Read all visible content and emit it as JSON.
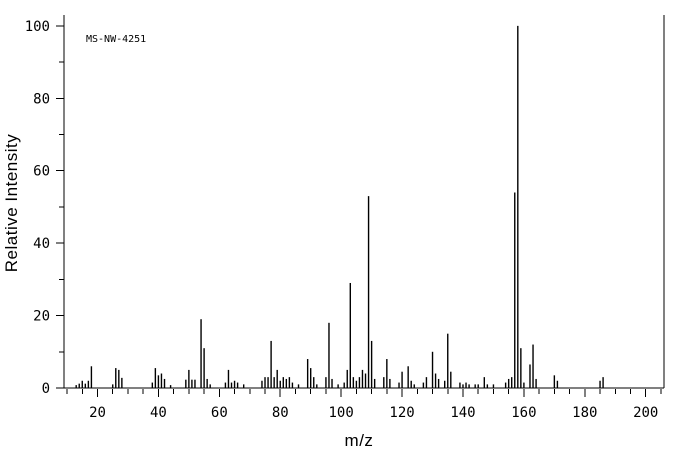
{
  "chart_data": {
    "type": "bar",
    "subtype": "mass-spectrum",
    "annotation": "MS-NW-4251",
    "xlabel": "m/z",
    "ylabel": "Relative Intensity",
    "background": "#ffffff",
    "bar_color": "#000000",
    "axis_color": "#000000",
    "grid": false,
    "legend": "none",
    "xlim": [
      9,
      206
    ],
    "ylim": [
      0,
      103
    ],
    "x_major_ticks": [
      20,
      40,
      60,
      80,
      100,
      120,
      140,
      160,
      180,
      200
    ],
    "x_minor_tick_step": 5,
    "y_major_ticks": [
      0,
      20,
      40,
      60,
      80,
      100
    ],
    "y_minor_tick_step": 10,
    "base_peak_mz": 158,
    "peaks": [
      [
        13,
        0.8
      ],
      [
        14,
        1.2
      ],
      [
        15,
        2
      ],
      [
        16,
        1.2
      ],
      [
        17,
        2
      ],
      [
        18,
        6
      ],
      [
        25,
        1
      ],
      [
        26,
        5.5
      ],
      [
        27,
        5
      ],
      [
        28,
        2.8
      ],
      [
        38,
        1.5
      ],
      [
        39,
        5.5
      ],
      [
        40,
        3.5
      ],
      [
        41,
        4
      ],
      [
        42,
        2.5
      ],
      [
        44,
        0.8
      ],
      [
        49,
        2.3
      ],
      [
        50,
        5
      ],
      [
        51,
        2.3
      ],
      [
        52,
        2.3
      ],
      [
        54,
        19
      ],
      [
        55,
        11
      ],
      [
        56,
        2.5
      ],
      [
        57,
        1
      ],
      [
        62,
        1.5
      ],
      [
        63,
        5
      ],
      [
        64,
        1.5
      ],
      [
        65,
        2
      ],
      [
        66,
        1.5
      ],
      [
        68,
        1
      ],
      [
        74,
        2
      ],
      [
        75,
        3
      ],
      [
        76,
        3
      ],
      [
        77,
        13
      ],
      [
        78,
        3
      ],
      [
        79,
        5
      ],
      [
        80,
        2
      ],
      [
        81,
        3
      ],
      [
        82,
        2.5
      ],
      [
        83,
        3
      ],
      [
        84,
        1.5
      ],
      [
        86,
        1
      ],
      [
        89,
        8
      ],
      [
        90,
        5.5
      ],
      [
        91,
        3
      ],
      [
        92,
        1
      ],
      [
        95,
        3
      ],
      [
        96,
        18
      ],
      [
        97,
        2.5
      ],
      [
        99,
        1
      ],
      [
        101,
        1.5
      ],
      [
        102,
        5
      ],
      [
        103,
        29
      ],
      [
        104,
        3
      ],
      [
        105,
        2
      ],
      [
        106,
        3
      ],
      [
        107,
        5
      ],
      [
        108,
        4
      ],
      [
        109,
        53
      ],
      [
        110,
        13
      ],
      [
        111,
        2.5
      ],
      [
        114,
        3
      ],
      [
        115,
        8
      ],
      [
        116,
        2.5
      ],
      [
        119,
        1.5
      ],
      [
        120,
        4.5
      ],
      [
        122,
        6
      ],
      [
        123,
        2
      ],
      [
        124,
        1
      ],
      [
        127,
        1.5
      ],
      [
        128,
        3
      ],
      [
        130,
        10
      ],
      [
        131,
        4
      ],
      [
        132,
        2.5
      ],
      [
        134,
        2
      ],
      [
        135,
        15
      ],
      [
        136,
        4.5
      ],
      [
        139,
        1.5
      ],
      [
        140,
        1
      ],
      [
        141,
        1.5
      ],
      [
        142,
        1
      ],
      [
        144,
        1
      ],
      [
        145,
        1
      ],
      [
        147,
        3
      ],
      [
        148,
        1
      ],
      [
        150,
        1
      ],
      [
        154,
        1.5
      ],
      [
        155,
        2.5
      ],
      [
        156,
        3
      ],
      [
        157,
        54
      ],
      [
        158,
        100
      ],
      [
        159,
        11
      ],
      [
        160,
        1.5
      ],
      [
        162,
        6.5
      ],
      [
        163,
        12
      ],
      [
        164,
        2.5
      ],
      [
        170,
        3.5
      ],
      [
        171,
        2
      ],
      [
        185,
        2
      ],
      [
        186,
        3
      ]
    ]
  }
}
